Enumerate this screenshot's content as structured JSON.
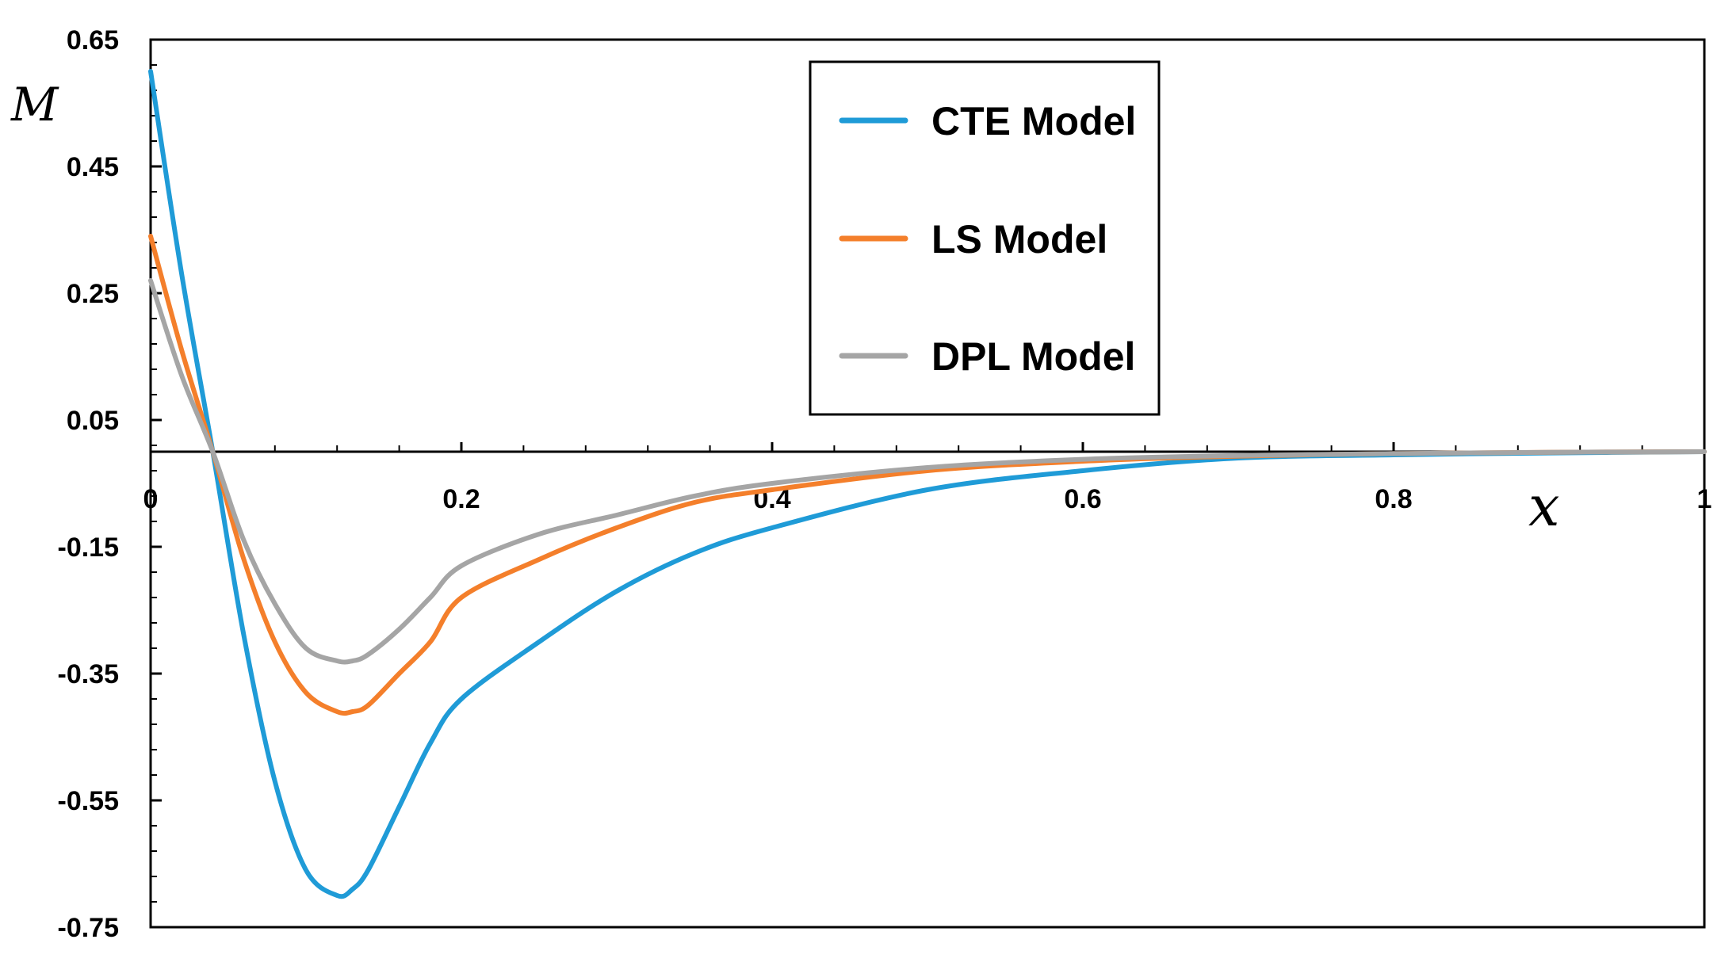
{
  "chart_data": {
    "type": "line",
    "title": "",
    "xlabel": "x",
    "ylabel": "M",
    "xlim": [
      0,
      1
    ],
    "ylim": [
      -0.75,
      0.65
    ],
    "x_ticks": [
      0,
      0.2,
      0.4,
      0.6,
      0.8,
      1
    ],
    "x_tick_labels": [
      "0",
      "0.2",
      "0.4",
      "0.6",
      "0.8",
      "1"
    ],
    "y_ticks": [
      0.65,
      0.45,
      0.25,
      0.05,
      -0.15,
      -0.35,
      -0.55,
      -0.75
    ],
    "y_tick_labels": [
      "0.65",
      "0.45",
      "0.25",
      "0.05",
      "-0.15",
      "-0.35",
      "-0.55",
      "-0.75"
    ],
    "legend_position": "top-center",
    "series": [
      {
        "name": "CTE Model",
        "color": "#1f9bd7",
        "x": [
          0,
          0.02,
          0.04,
          0.06,
          0.08,
          0.1,
          0.12,
          0.13,
          0.14,
          0.16,
          0.18,
          0.2,
          0.25,
          0.3,
          0.35,
          0.4,
          0.5,
          0.6,
          0.7,
          0.8,
          0.9,
          1.0
        ],
        "y": [
          0.6,
          0.28,
          0.0,
          -0.29,
          -0.52,
          -0.66,
          -0.7,
          -0.69,
          -0.66,
          -0.56,
          -0.46,
          -0.39,
          -0.3,
          -0.22,
          -0.16,
          -0.12,
          -0.06,
          -0.03,
          -0.01,
          -0.005,
          -0.002,
          0.0
        ]
      },
      {
        "name": "LS Model",
        "color": "#f47f2b",
        "x": [
          0,
          0.02,
          0.04,
          0.06,
          0.08,
          0.1,
          0.12,
          0.13,
          0.14,
          0.16,
          0.18,
          0.2,
          0.25,
          0.3,
          0.35,
          0.4,
          0.5,
          0.6,
          0.7,
          0.8,
          0.9,
          1.0
        ],
        "y": [
          0.34,
          0.16,
          0.0,
          -0.17,
          -0.3,
          -0.38,
          -0.41,
          -0.41,
          -0.4,
          -0.35,
          -0.3,
          -0.23,
          -0.17,
          -0.12,
          -0.08,
          -0.06,
          -0.03,
          -0.015,
          -0.007,
          -0.003,
          -0.001,
          0.0
        ]
      },
      {
        "name": "DPL Model",
        "color": "#a5a5a5",
        "x": [
          0,
          0.02,
          0.04,
          0.06,
          0.08,
          0.1,
          0.12,
          0.13,
          0.14,
          0.16,
          0.18,
          0.2,
          0.25,
          0.3,
          0.35,
          0.4,
          0.5,
          0.6,
          0.7,
          0.8,
          0.9,
          1.0
        ],
        "y": [
          0.27,
          0.12,
          0.0,
          -0.14,
          -0.24,
          -0.31,
          -0.33,
          -0.33,
          -0.32,
          -0.28,
          -0.23,
          -0.18,
          -0.13,
          -0.1,
          -0.07,
          -0.05,
          -0.025,
          -0.012,
          -0.006,
          -0.003,
          -0.001,
          0.0
        ]
      }
    ]
  }
}
